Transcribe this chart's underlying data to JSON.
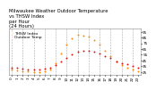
{
  "title": "Milwaukee Weather Outdoor Temperature vs THSW Index per Hour (24 Hours)",
  "title_line1": "Milwaukee Weather Outdoor Temperature",
  "title_line2": "vs THSW Index",
  "title_line3": "per Hour",
  "title_line4": "(24 Hours)",
  "title_fontsize": 3.8,
  "background_color": "#ffffff",
  "plot_bg_color": "#ffffff",
  "grid_color": "#aaaaaa",
  "temp_color": "#dd1111",
  "thsw_color": "#ff8800",
  "hours": [
    0,
    1,
    2,
    3,
    4,
    5,
    6,
    7,
    8,
    9,
    10,
    11,
    12,
    13,
    14,
    15,
    16,
    17,
    18,
    19,
    20,
    21,
    22,
    23
  ],
  "temp_values": [
    33,
    32,
    31,
    30,
    30,
    30,
    31,
    33,
    37,
    43,
    50,
    56,
    61,
    62,
    62,
    60,
    57,
    53,
    49,
    44,
    41,
    38,
    35,
    32
  ],
  "thsw_values": [
    29,
    28,
    27,
    26,
    25,
    25,
    26,
    29,
    40,
    57,
    73,
    84,
    90,
    88,
    86,
    80,
    72,
    62,
    52,
    43,
    37,
    33,
    29,
    26
  ],
  "ylim": [
    20,
    100
  ],
  "yticks": [
    25,
    35,
    45,
    55,
    65,
    75,
    85,
    95
  ],
  "ytick_labels": [
    "25",
    "35",
    "45",
    "55",
    "65",
    "75",
    "85",
    "95"
  ],
  "tick_fontsize": 3.0,
  "marker_size": 2.0,
  "legend_labels": [
    "Outdoor Temp",
    "THSW Index"
  ],
  "legend_fontsize": 3.2,
  "grid_every": 2,
  "text_color": "#000000"
}
